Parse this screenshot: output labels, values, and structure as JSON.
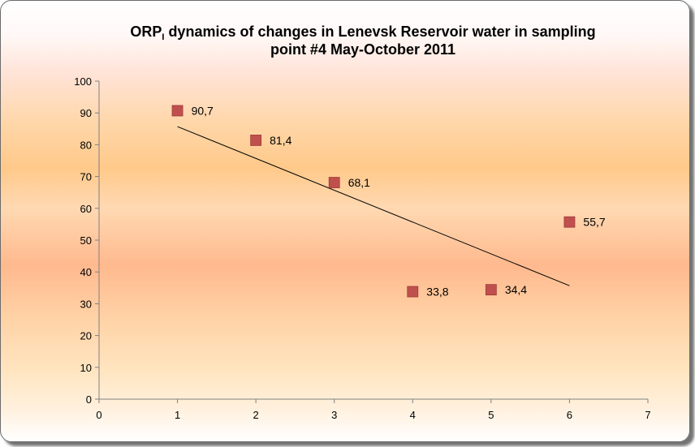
{
  "chart_data": {
    "type": "scatter",
    "title": {
      "main": "ORP",
      "subscript": "I",
      "rest_line1": " dynamics  of changes in Lenevsk Reservoir water in sampling",
      "line2": "point #4 May-October 2011"
    },
    "xlabel": "",
    "ylabel": "",
    "xlim": [
      0,
      7
    ],
    "ylim": [
      0,
      100
    ],
    "xticks": [
      0,
      1,
      2,
      3,
      4,
      5,
      6,
      7
    ],
    "yticks": [
      0,
      10,
      20,
      30,
      40,
      50,
      60,
      70,
      80,
      90,
      100
    ],
    "grid": false,
    "legend": "none",
    "series": [
      {
        "x": [
          1,
          2,
          3,
          4,
          5,
          6
        ],
        "y": [
          90.7,
          81.4,
          68.1,
          33.8,
          34.4,
          55.7
        ],
        "labels": [
          "90,7",
          "81,4",
          "68,1",
          "33,8",
          "34,4",
          "55,7"
        ],
        "color": "#c0504d",
        "marker": "square"
      }
    ],
    "trendline": {
      "type": "linear",
      "x_start": 1,
      "x_end": 6,
      "color": "#000000"
    }
  }
}
